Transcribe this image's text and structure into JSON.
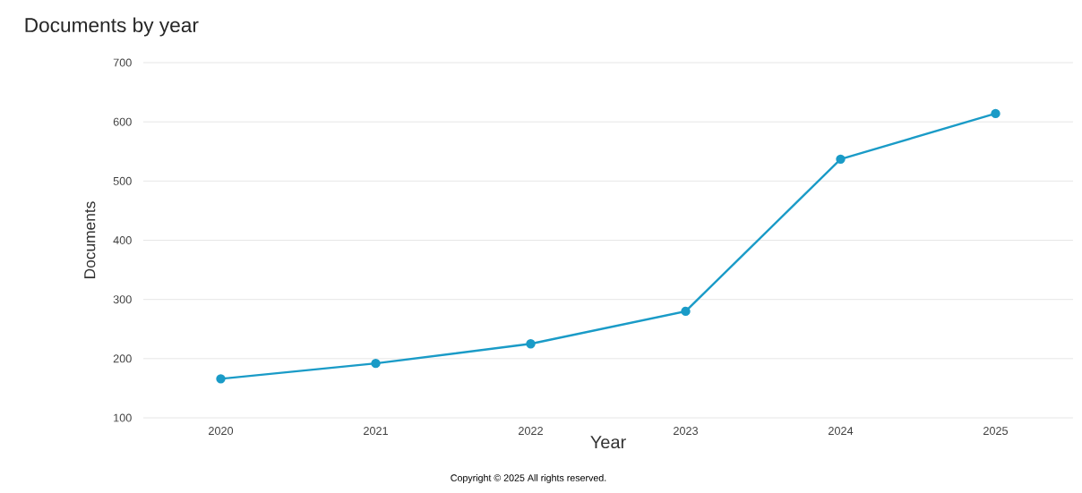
{
  "chart_data": {
    "type": "line",
    "title": "Documents by year",
    "xlabel": "Year",
    "ylabel": "Documents",
    "categories": [
      "2020",
      "2021",
      "2022",
      "2023",
      "2024",
      "2025"
    ],
    "values": [
      166,
      192,
      225,
      280,
      537,
      614
    ],
    "color": "#1a9bc7",
    "ylim": [
      100,
      700
    ],
    "yticks": [
      100,
      200,
      300,
      400,
      500,
      600,
      700
    ],
    "grid": "y",
    "marker": "circle",
    "line_style": "solid",
    "annotations": [
      "Copyright © 2025 All rights reserved."
    ]
  }
}
